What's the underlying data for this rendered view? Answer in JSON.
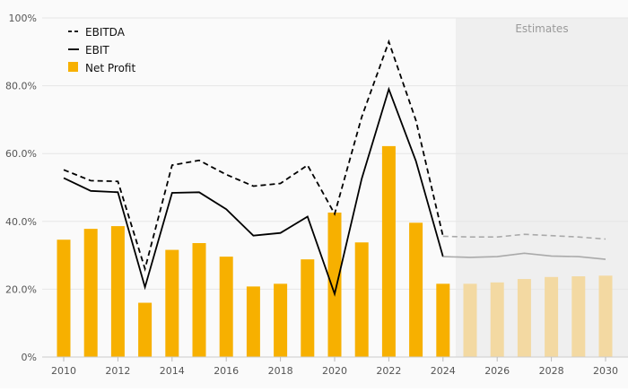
{
  "colors": {
    "background": "#fafafa",
    "estimate_band": "#efefef",
    "grid": "#e6e6e6",
    "axis_text": "#555555",
    "ebitda_line": "#000000",
    "ebit_line": "#000000",
    "estimate_line": "#aaaaaa",
    "bar": "#f7b000",
    "bar_estimate": "#f3d9a2",
    "estimates_label": "#9a9a9a"
  },
  "chart_data": {
    "type": "bar",
    "title": "",
    "xlabel": "",
    "ylabel": "",
    "ylim": [
      0,
      100
    ],
    "yticks": [
      0,
      20,
      40,
      60,
      80,
      100
    ],
    "ytick_labels": [
      "0%",
      "20.0%",
      "40.0%",
      "60.0%",
      "80.0%",
      "100%"
    ],
    "x": [
      2010,
      2011,
      2012,
      2013,
      2014,
      2015,
      2016,
      2017,
      2018,
      2019,
      2020,
      2021,
      2022,
      2023,
      2024,
      2025,
      2026,
      2027,
      2028,
      2029,
      2030
    ],
    "xtick_labels": [
      "2010",
      "2012",
      "2014",
      "2016",
      "2018",
      "2020",
      "2022",
      "2024",
      "2026",
      "2028",
      "2030"
    ],
    "xtick_years": [
      2010,
      2012,
      2014,
      2016,
      2018,
      2020,
      2022,
      2024,
      2026,
      2028,
      2030
    ],
    "estimate_start_year": 2025,
    "estimates_label": "Estimates",
    "grid": true,
    "legend_position": "top-left",
    "legend": [
      {
        "label": "EBITDA",
        "style": "dashed-line"
      },
      {
        "label": "EBIT",
        "style": "solid-line"
      },
      {
        "label": "Net Profit",
        "style": "bar"
      }
    ],
    "series": [
      {
        "name": "EBITDA",
        "type": "line",
        "values": [
          55.2,
          52.0,
          51.8,
          26.0,
          56.6,
          58.0,
          53.8,
          50.4,
          51.2,
          56.6,
          42.2,
          70.8,
          93.0,
          69.8,
          35.6,
          35.4,
          35.4,
          36.2,
          35.8,
          35.4,
          34.8
        ]
      },
      {
        "name": "EBIT",
        "type": "line",
        "values": [
          52.8,
          49.0,
          48.6,
          20.6,
          48.4,
          48.6,
          43.6,
          35.8,
          36.6,
          41.4,
          18.6,
          52.6,
          79.0,
          57.8,
          29.6,
          29.4,
          29.6,
          30.6,
          29.8,
          29.6,
          28.8
        ]
      },
      {
        "name": "Net Profit",
        "type": "bar",
        "values": [
          34.6,
          37.8,
          38.6,
          16.0,
          31.6,
          33.6,
          29.6,
          20.8,
          21.6,
          28.8,
          42.6,
          33.8,
          62.2,
          39.6,
          21.6,
          21.6,
          22.0,
          23.0,
          23.6,
          23.8,
          24.0
        ]
      }
    ]
  }
}
